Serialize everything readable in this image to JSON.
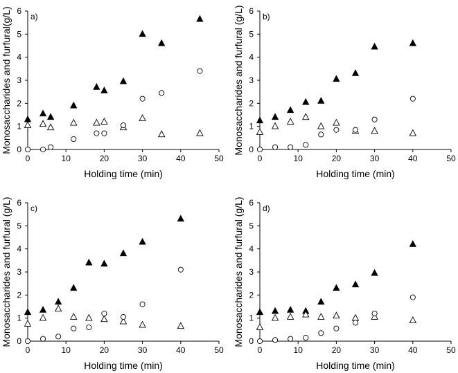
{
  "chart_data": [
    {
      "type": "scatter",
      "panel_label": "a)",
      "xlabel": "Holding time (min)",
      "ylabel": "Monosaccharides and furfural(g/L)",
      "xlim": [
        0,
        50
      ],
      "ylim": [
        0,
        6
      ],
      "xticks": [
        0,
        10,
        20,
        30,
        40,
        50
      ],
      "yticks": [
        0,
        1,
        2,
        3,
        4,
        5,
        6
      ],
      "series": [
        {
          "name": "filled-triangle",
          "marker": "filled-triangle",
          "x": [
            0,
            4,
            6,
            12,
            18,
            20,
            25,
            30,
            35,
            45
          ],
          "y": [
            1.3,
            1.55,
            1.4,
            1.9,
            2.7,
            2.55,
            2.95,
            5.0,
            4.6,
            5.65
          ]
        },
        {
          "name": "open-triangle",
          "marker": "open-triangle",
          "x": [
            0,
            4,
            6,
            12,
            18,
            20,
            25,
            30,
            35,
            45
          ],
          "y": [
            1.05,
            1.1,
            0.95,
            1.15,
            1.15,
            1.2,
            0.95,
            1.35,
            0.65,
            0.7
          ]
        },
        {
          "name": "open-circle",
          "marker": "open-circle",
          "x": [
            0,
            4,
            6,
            12,
            18,
            20,
            25,
            30,
            35,
            45
          ],
          "y": [
            0.0,
            0.0,
            0.1,
            0.45,
            0.7,
            0.7,
            1.05,
            2.2,
            2.45,
            3.4
          ]
        }
      ]
    },
    {
      "type": "scatter",
      "panel_label": "b)",
      "xlabel": "Holding time (min)",
      "ylabel": "Monosaccharides and furfural (g/L)",
      "xlim": [
        0,
        50
      ],
      "ylim": [
        0,
        6
      ],
      "xticks": [
        0,
        10,
        20,
        30,
        40,
        50
      ],
      "yticks": [
        0,
        1,
        2,
        3,
        4,
        5,
        6
      ],
      "series": [
        {
          "name": "filled-triangle",
          "marker": "filled-triangle",
          "x": [
            0,
            4,
            8,
            12,
            16,
            20,
            25,
            30,
            40
          ],
          "y": [
            1.25,
            1.4,
            1.7,
            2.05,
            2.1,
            3.05,
            3.3,
            4.45,
            4.6
          ]
        },
        {
          "name": "open-triangle",
          "marker": "open-triangle",
          "x": [
            0,
            4,
            8,
            12,
            16,
            20,
            25,
            30,
            40
          ],
          "y": [
            0.75,
            1.0,
            1.2,
            1.4,
            1.0,
            1.15,
            0.8,
            0.8,
            0.7
          ]
        },
        {
          "name": "open-circle",
          "marker": "open-circle",
          "x": [
            0,
            4,
            8,
            12,
            16,
            20,
            25,
            30,
            40
          ],
          "y": [
            0.0,
            0.1,
            0.1,
            0.2,
            0.65,
            0.85,
            0.85,
            1.3,
            2.2
          ]
        }
      ]
    },
    {
      "type": "scatter",
      "panel_label": "c)",
      "xlabel": "Holding time (min)",
      "ylabel": "Monosaccharides and furfural (g/L)",
      "xlim": [
        0,
        50
      ],
      "ylim": [
        0,
        6
      ],
      "xticks": [
        0,
        10,
        20,
        30,
        40,
        50
      ],
      "yticks": [
        0,
        1,
        2,
        3,
        4,
        5,
        6
      ],
      "series": [
        {
          "name": "filled-triangle",
          "marker": "filled-triangle",
          "x": [
            0,
            4,
            8,
            12,
            16,
            20,
            25,
            30,
            40
          ],
          "y": [
            1.25,
            1.35,
            1.7,
            2.3,
            3.4,
            3.35,
            3.8,
            4.3,
            5.3
          ]
        },
        {
          "name": "open-triangle",
          "marker": "open-triangle",
          "x": [
            0,
            4,
            8,
            12,
            16,
            20,
            25,
            30,
            40
          ],
          "y": [
            0.75,
            1.0,
            1.4,
            1.05,
            1.0,
            0.95,
            0.85,
            0.7,
            0.65
          ]
        },
        {
          "name": "open-circle",
          "marker": "open-circle",
          "x": [
            0,
            4,
            8,
            12,
            16,
            20,
            25,
            30,
            40
          ],
          "y": [
            0.0,
            0.1,
            0.2,
            0.55,
            0.6,
            1.2,
            1.05,
            1.6,
            3.1
          ]
        }
      ]
    },
    {
      "type": "scatter",
      "panel_label": "d)",
      "xlabel": "Holding time (min)",
      "ylabel": "Monosaccharides and furfural (g/L)",
      "xlim": [
        0,
        50
      ],
      "ylim": [
        0,
        6
      ],
      "xticks": [
        0,
        10,
        20,
        30,
        40,
        50
      ],
      "yticks": [
        0,
        1,
        2,
        3,
        4,
        5,
        6
      ],
      "series": [
        {
          "name": "filled-triangle",
          "marker": "filled-triangle",
          "x": [
            0,
            4,
            8,
            12,
            16,
            20,
            25,
            30,
            40
          ],
          "y": [
            1.25,
            1.3,
            1.35,
            1.3,
            1.7,
            2.3,
            2.45,
            2.95,
            4.2
          ]
        },
        {
          "name": "open-triangle",
          "marker": "open-triangle",
          "x": [
            0,
            4,
            8,
            12,
            16,
            20,
            25,
            30,
            40
          ],
          "y": [
            0.6,
            1.0,
            1.05,
            1.15,
            1.05,
            1.1,
            1.0,
            1.05,
            0.9
          ]
        },
        {
          "name": "open-circle",
          "marker": "open-circle",
          "x": [
            0,
            4,
            8,
            12,
            16,
            20,
            25,
            30,
            40
          ],
          "y": [
            0.0,
            0.05,
            0.1,
            0.15,
            0.35,
            0.55,
            0.8,
            1.2,
            1.9
          ]
        }
      ]
    }
  ]
}
